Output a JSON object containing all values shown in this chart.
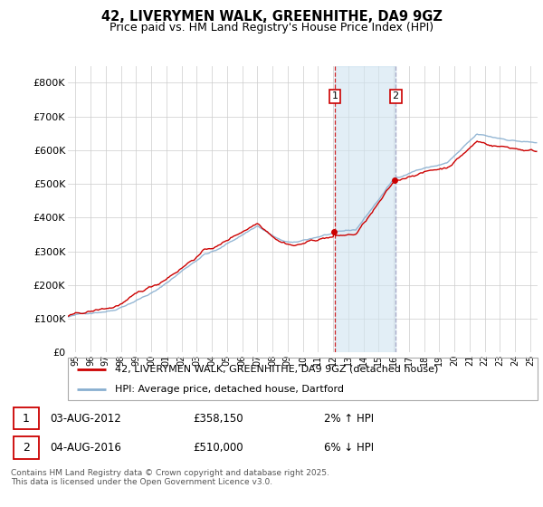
{
  "title": "42, LIVERYMEN WALK, GREENHITHE, DA9 9GZ",
  "subtitle": "Price paid vs. HM Land Registry's House Price Index (HPI)",
  "ylim": [
    0,
    850000
  ],
  "yticks": [
    0,
    100000,
    200000,
    300000,
    400000,
    500000,
    600000,
    700000,
    800000
  ],
  "ytick_labels": [
    "£0",
    "£100K",
    "£200K",
    "£300K",
    "£400K",
    "£500K",
    "£600K",
    "£700K",
    "£800K"
  ],
  "hpi_color": "#89afd0",
  "price_color": "#cc0000",
  "background_color": "#ffffff",
  "grid_color": "#cccccc",
  "sale1_year": 2012,
  "sale1_month": 8,
  "sale1_price": 358150,
  "sale2_year": 2016,
  "sale2_month": 8,
  "sale2_price": 510000,
  "legend_line1": "42, LIVERYMEN WALK, GREENHITHE, DA9 9GZ (detached house)",
  "legend_line2": "HPI: Average price, detached house, Dartford",
  "footnote": "Contains HM Land Registry data © Crown copyright and database right 2025.\nThis data is licensed under the Open Government Licence v3.0.",
  "xmin": 1995.0,
  "xmax": 2025.99
}
